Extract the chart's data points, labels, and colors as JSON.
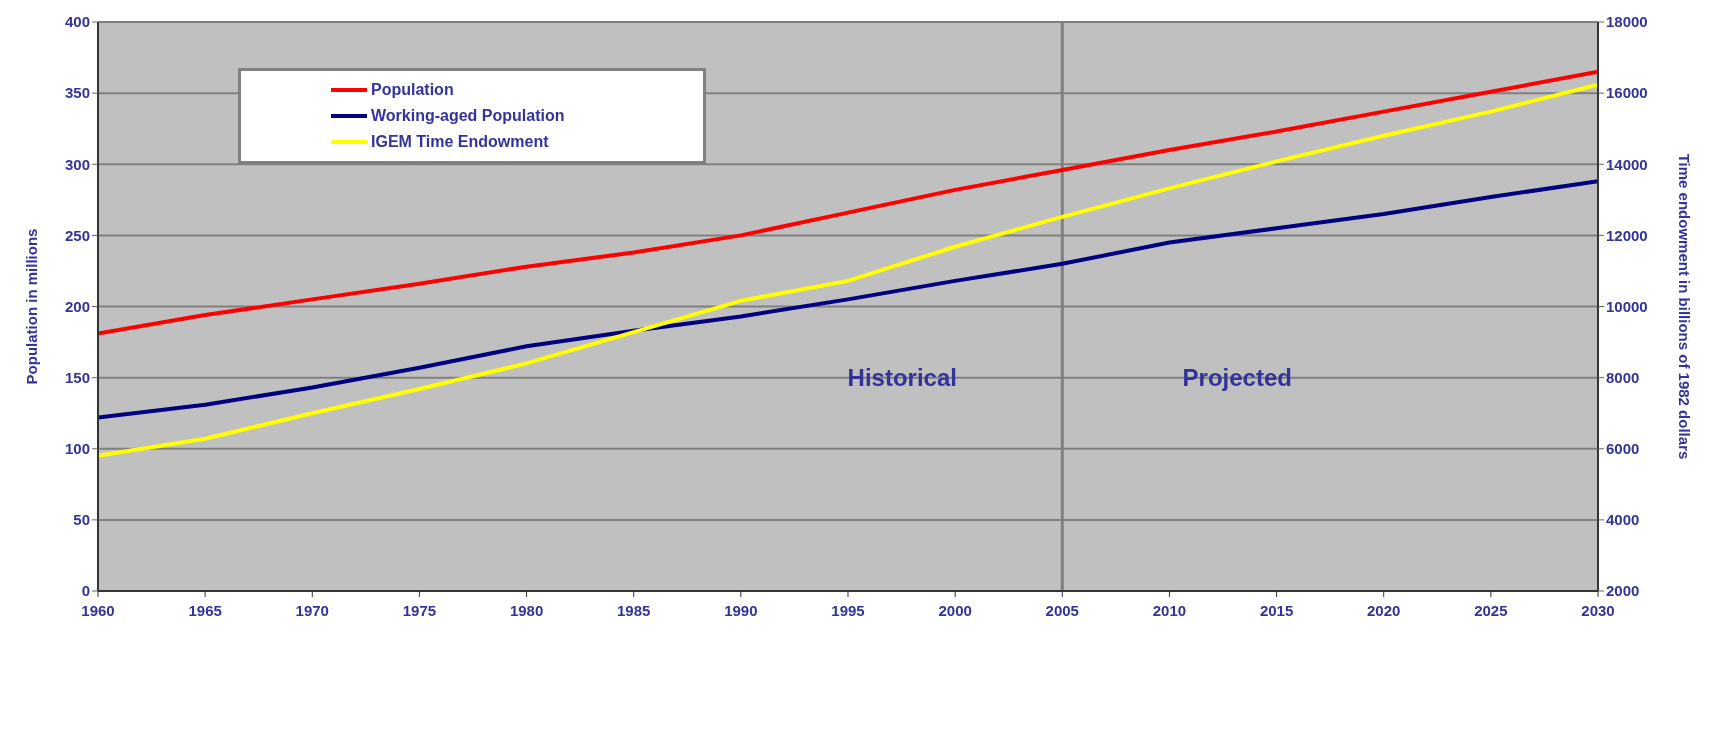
{
  "chart_data": {
    "type": "line",
    "ylabel": "Population in millions",
    "y2label": "Time endowment in billions of 1982 dollars",
    "x": [
      1960,
      1965,
      1970,
      1975,
      1980,
      1985,
      1990,
      1995,
      2000,
      2005,
      2010,
      2015,
      2020,
      2025,
      2030
    ],
    "series": [
      {
        "name": "Population",
        "color": "#ff0000",
        "values": [
          181,
          194,
          205,
          216,
          228,
          238,
          250,
          266,
          282,
          296,
          310,
          323,
          337,
          351,
          365
        ]
      },
      {
        "name": "Working-aged Population",
        "color": "#000080",
        "values": [
          122,
          131,
          143,
          157,
          172,
          183,
          193,
          205,
          218,
          230,
          245,
          255,
          265,
          277,
          288
        ]
      },
      {
        "name": "IGEM Time Endowment",
        "color": "#ffff00",
        "axis": "y2",
        "values": [
          5800,
          6280,
          7000,
          7680,
          8400,
          9280,
          10160,
          10720,
          11680,
          12520,
          13320,
          14080,
          14800,
          15480,
          16240
        ]
      }
    ],
    "xlim": [
      1960,
      2030
    ],
    "xticks": [
      1960,
      1965,
      1970,
      1975,
      1980,
      1985,
      1990,
      1995,
      2000,
      2005,
      2010,
      2015,
      2020,
      2025,
      2030
    ],
    "ylim": [
      0,
      400
    ],
    "yticks": [
      0,
      50,
      100,
      150,
      200,
      250,
      300,
      350,
      400
    ],
    "y2lim": [
      2000,
      18000
    ],
    "y2ticks": [
      2000,
      4000,
      6000,
      8000,
      10000,
      12000,
      14000,
      16000,
      18000
    ],
    "ref_lines": [
      {
        "axis": "x",
        "value": 2005,
        "color": "#808080"
      }
    ],
    "annotations": [
      "Historical",
      "Projected"
    ],
    "grid": "y",
    "legend": "top left",
    "marker": "none",
    "line_style": "solid"
  }
}
